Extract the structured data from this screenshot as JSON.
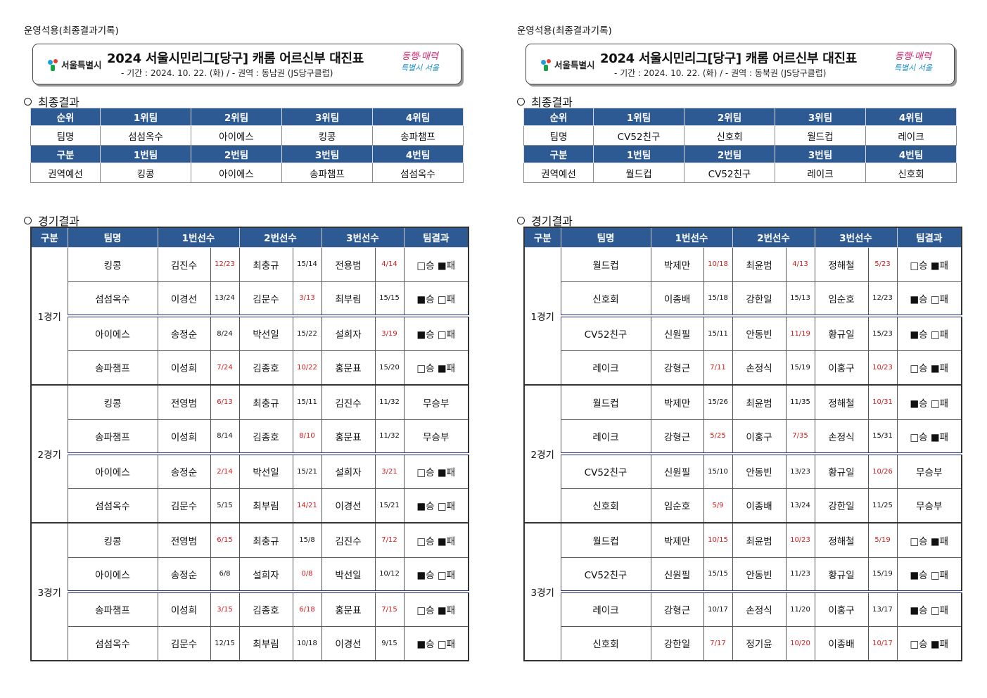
{
  "sheets": [
    {
      "ops_label": "운영석용(최종결과기록)",
      "logo_text": "서울특별시",
      "title": "2024 서울시민리그[당구] 캐롬 어르신부 대진표",
      "subtitle": "- 기간 : 2024. 10. 22. (화) / - 권역 : 동남권 (JS당구클럽)",
      "slogan_1": "동행·매력",
      "slogan_2": "특별시 서울",
      "final_section": "최종결과",
      "final_header_1": [
        "순위",
        "1위팀",
        "2위팀",
        "3위팀",
        "4위팀"
      ],
      "final_row_1": [
        "팀명",
        "섬섬옥수",
        "아이에스",
        "킹콩",
        "송파챔프"
      ],
      "final_header_2": [
        "구분",
        "1번팀",
        "2번팀",
        "3번팀",
        "4번팀"
      ],
      "final_row_2": [
        "권역예선",
        "킹콩",
        "아이에스",
        "송파챔프",
        "섬섬옥수"
      ],
      "match_section": "경기결과",
      "match_header": [
        "구분",
        "팀명",
        "1번선수",
        "2번선수",
        "3번선수",
        "팀결과"
      ],
      "games": [
        {
          "label": "1경기",
          "rows": [
            {
              "team": "킹콩",
              "p1": "김진수",
              "s1": "12/23",
              "r1": true,
              "p2": "최충규",
              "s2": "15/14",
              "r2": false,
              "p3": "전용범",
              "s3": "4/14",
              "r3": true,
              "result": "□승 ■패"
            },
            {
              "team": "섬섬옥수",
              "p1": "이경선",
              "s1": "13/24",
              "r1": false,
              "p2": "김문수",
              "s2": "3/13",
              "r2": true,
              "p3": "최부림",
              "s3": "15/15",
              "r3": false,
              "result": "■승 □패"
            },
            {
              "team": "아이에스",
              "p1": "송정순",
              "s1": "8/24",
              "r1": false,
              "p2": "박선일",
              "s2": "15/22",
              "r2": false,
              "p3": "설희자",
              "s3": "3/19",
              "r3": true,
              "result": "■승 □패"
            },
            {
              "team": "송파챔프",
              "p1": "이성희",
              "s1": "7/24",
              "r1": true,
              "p2": "김종호",
              "s2": "10/22",
              "r2": true,
              "p3": "홍문표",
              "s3": "15/20",
              "r3": false,
              "result": "□승 ■패"
            }
          ]
        },
        {
          "label": "2경기",
          "rows": [
            {
              "team": "킹콩",
              "p1": "전영범",
              "s1": "6/13",
              "r1": true,
              "p2": "최충규",
              "s2": "15/11",
              "r2": false,
              "p3": "김진수",
              "s3": "11/32",
              "r3": false,
              "result": "무승부"
            },
            {
              "team": "송파챔프",
              "p1": "이성희",
              "s1": "8/14",
              "r1": false,
              "p2": "김종호",
              "s2": "8/10",
              "r2": true,
              "p3": "홍문표",
              "s3": "11/32",
              "r3": false,
              "result": "무승부"
            },
            {
              "team": "아이에스",
              "p1": "송정순",
              "s1": "2/14",
              "r1": true,
              "p2": "박선일",
              "s2": "15/21",
              "r2": false,
              "p3": "설희자",
              "s3": "3/21",
              "r3": true,
              "result": "□승 ■패"
            },
            {
              "team": "섬섬옥수",
              "p1": "김문수",
              "s1": "5/15",
              "r1": false,
              "p2": "최부림",
              "s2": "14/21",
              "r2": true,
              "p3": "이경선",
              "s3": "15/21",
              "r3": false,
              "result": "■승 □패"
            }
          ]
        },
        {
          "label": "3경기",
          "rows": [
            {
              "team": "킹콩",
              "p1": "전영범",
              "s1": "6/15",
              "r1": true,
              "p2": "최충규",
              "s2": "15/8",
              "r2": false,
              "p3": "김진수",
              "s3": "7/12",
              "r3": true,
              "result": "□승 ■패"
            },
            {
              "team": "아이에스",
              "p1": "송정순",
              "s1": "6/8",
              "r1": false,
              "p2": "설희자",
              "s2": "0/8",
              "r2": true,
              "p3": "박선일",
              "s3": "10/12",
              "r3": false,
              "result": "■승 □패"
            },
            {
              "team": "송파챔프",
              "p1": "이성희",
              "s1": "3/15",
              "r1": true,
              "p2": "김종호",
              "s2": "6/18",
              "r2": true,
              "p3": "홍문표",
              "s3": "7/15",
              "r3": true,
              "result": "□승 ■패"
            },
            {
              "team": "섬섬옥수",
              "p1": "김문수",
              "s1": "12/15",
              "r1": false,
              "p2": "최부림",
              "s2": "10/18",
              "r2": false,
              "p3": "이경선",
              "s3": "9/15",
              "r3": false,
              "result": "■승 □패"
            }
          ]
        }
      ]
    },
    {
      "ops_label": "운영석용(최종결과기록)",
      "logo_text": "서울특별시",
      "title": "2024 서울시민리그[당구] 캐롬 어르신부 대진표",
      "subtitle": "- 기간 : 2024. 10. 22. (화) / - 권역 : 동북권 (JS당구클럽)",
      "slogan_1": "동행·매력",
      "slogan_2": "특별시 서울",
      "final_section": "최종결과",
      "final_header_1": [
        "순위",
        "1위팀",
        "2위팀",
        "3위팀",
        "4위팀"
      ],
      "final_row_1": [
        "팀명",
        "CV52친구",
        "신호회",
        "월드컵",
        "레이크"
      ],
      "final_header_2": [
        "구분",
        "1번팀",
        "2번팀",
        "3번팀",
        "4번팀"
      ],
      "final_row_2": [
        "권역예선",
        "월드컵",
        "CV52친구",
        "레이크",
        "신호회"
      ],
      "match_section": "경기결과",
      "match_header": [
        "구분",
        "팀명",
        "1번선수",
        "2번선수",
        "3번선수",
        "팀결과"
      ],
      "games": [
        {
          "label": "1경기",
          "rows": [
            {
              "team": "월드컵",
              "p1": "박제만",
              "s1": "10/18",
              "r1": true,
              "p2": "최윤범",
              "s2": "4/13",
              "r2": true,
              "p3": "정해철",
              "s3": "5/23",
              "r3": true,
              "result": "□승 ■패"
            },
            {
              "team": "신호회",
              "p1": "이종배",
              "s1": "15/18",
              "r1": false,
              "p2": "강한일",
              "s2": "15/13",
              "r2": false,
              "p3": "임순호",
              "s3": "12/23",
              "r3": false,
              "result": "■승 □패"
            },
            {
              "team": "CV52친구",
              "p1": "신원필",
              "s1": "15/11",
              "r1": false,
              "p2": "안동빈",
              "s2": "11/19",
              "r2": true,
              "p3": "황규일",
              "s3": "15/23",
              "r3": false,
              "result": "■승 □패"
            },
            {
              "team": "레이크",
              "p1": "강형근",
              "s1": "7/11",
              "r1": true,
              "p2": "손정식",
              "s2": "15/19",
              "r2": false,
              "p3": "이홍구",
              "s3": "10/23",
              "r3": true,
              "result": "□승 ■패"
            }
          ]
        },
        {
          "label": "2경기",
          "rows": [
            {
              "team": "월드컵",
              "p1": "박제만",
              "s1": "15/26",
              "r1": false,
              "p2": "최윤범",
              "s2": "11/35",
              "r2": false,
              "p3": "정해철",
              "s3": "10/31",
              "r3": true,
              "result": "■승 □패"
            },
            {
              "team": "레이크",
              "p1": "강형근",
              "s1": "5/25",
              "r1": true,
              "p2": "이홍구",
              "s2": "7/35",
              "r2": true,
              "p3": "손정식",
              "s3": "15/31",
              "r3": false,
              "result": "□승 ■패"
            },
            {
              "team": "CV52친구",
              "p1": "신원필",
              "s1": "15/10",
              "r1": false,
              "p2": "안동빈",
              "s2": "13/23",
              "r2": false,
              "p3": "황규일",
              "s3": "10/26",
              "r3": true,
              "result": "무승부"
            },
            {
              "team": "신호회",
              "p1": "임순호",
              "s1": "5/9",
              "r1": true,
              "p2": "이종배",
              "s2": "13/24",
              "r2": false,
              "p3": "강한일",
              "s3": "11/25",
              "r3": false,
              "result": "무승부"
            }
          ]
        },
        {
          "label": "3경기",
          "rows": [
            {
              "team": "월드컵",
              "p1": "박제만",
              "s1": "10/15",
              "r1": true,
              "p2": "최윤범",
              "s2": "10/23",
              "r2": true,
              "p3": "정해철",
              "s3": "5/19",
              "r3": true,
              "result": "□승 ■패"
            },
            {
              "team": "CV52친구",
              "p1": "신원필",
              "s1": "15/15",
              "r1": false,
              "p2": "안동빈",
              "s2": "11/23",
              "r2": false,
              "p3": "황규일",
              "s3": "15/19",
              "r3": false,
              "result": "■승 □패"
            },
            {
              "team": "레이크",
              "p1": "강형근",
              "s1": "10/17",
              "r1": false,
              "p2": "손정식",
              "s2": "11/20",
              "r2": false,
              "p3": "이홍구",
              "s3": "13/17",
              "r3": false,
              "result": "■승 □패"
            },
            {
              "team": "신호회",
              "p1": "강한일",
              "s1": "7/17",
              "r1": true,
              "p2": "정기윤",
              "s2": "10/20",
              "r2": true,
              "p3": "이종배",
              "s3": "10/17",
              "r3": true,
              "result": "□승 ■패"
            }
          ]
        }
      ]
    }
  ]
}
